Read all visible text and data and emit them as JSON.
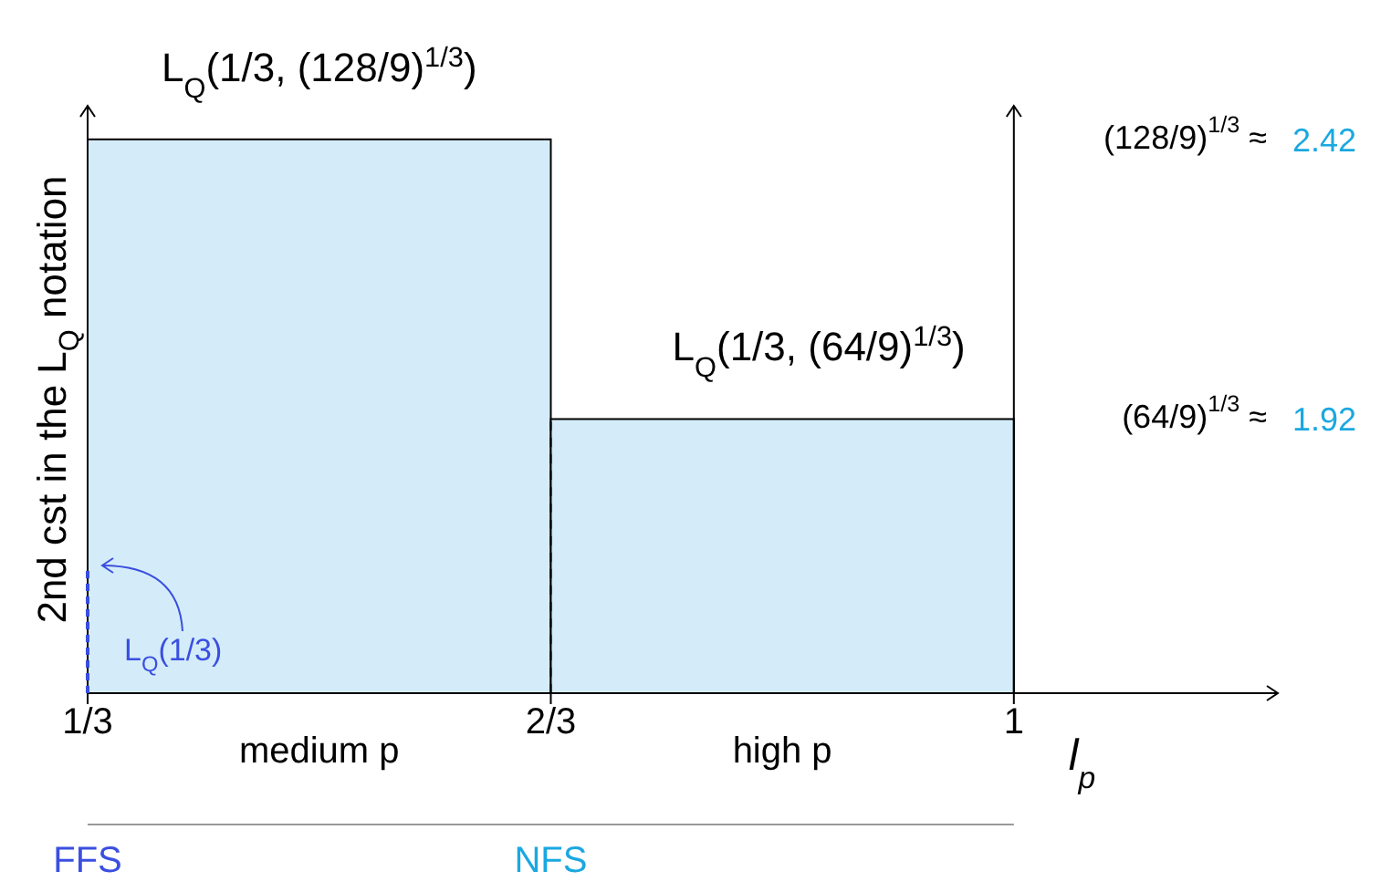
{
  "chart_data": {
    "type": "histogram",
    "xlabel": "l$_{p}$",
    "ylabel": "2nd cst in the L$_{Q}$ notation",
    "bins": [
      0.3333,
      0.6667,
      1
    ],
    "values": [
      2.42,
      1.92
    ],
    "color": "#d4ecf9",
    "xlim": [
      0.3333,
      1.19
    ],
    "xticks": [
      {
        "value": 0.3333,
        "label": "1/3"
      },
      {
        "value": 0.6667,
        "label": "2/3"
      },
      {
        "value": 1,
        "label": "1"
      }
    ],
    "ylim": [
      1.43,
      2.48
    ],
    "yticks": [
      1.92,
      2.42
    ],
    "annotations": [
      "L$_{Q}$(1/3, (128/9)$^{1/3}$)",
      "L$_{Q}$(1/3, (64/9)$^{1/3}$)",
      "L$_{Q}$(1/3)",
      "medium p",
      "high p",
      "FFS",
      "NFS",
      "(64/9)$^{1/3}$ ≈",
      "(128/9)$^{1/3}$ ≈"
    ]
  }
}
